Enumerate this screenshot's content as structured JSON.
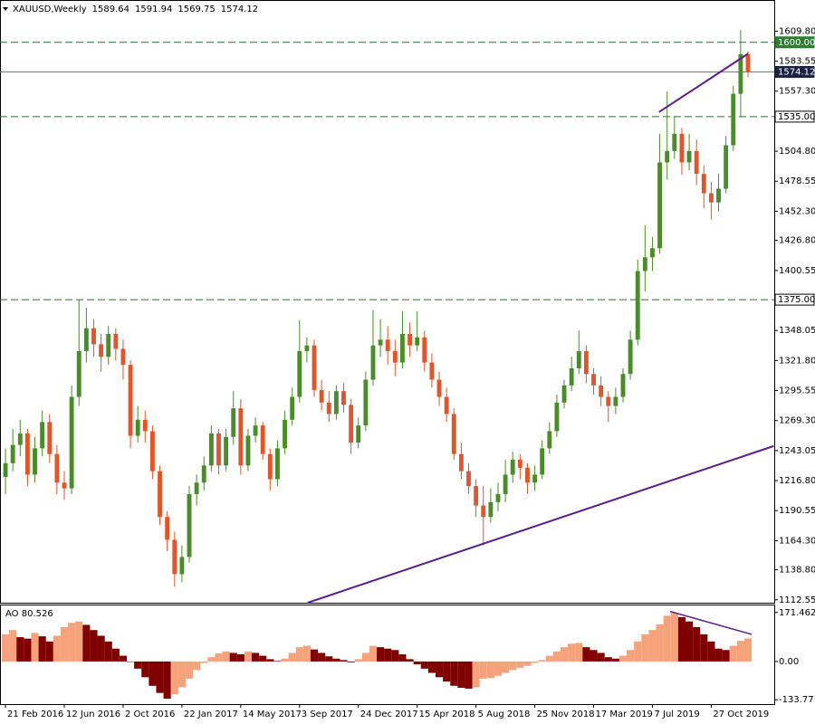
{
  "chart_data": [
    {
      "type": "candlestick",
      "title": "XAUUSD,Weekly",
      "header_values": [
        1589.64,
        1591.94,
        1569.75,
        1574.12
      ],
      "categories": [
        "21 Feb 2016",
        null,
        null,
        null,
        null,
        null,
        null,
        null,
        "12 Jun 2016",
        null,
        null,
        null,
        null,
        null,
        null,
        null,
        "2 Oct 2016",
        null,
        null,
        null,
        null,
        null,
        null,
        null,
        "22 Jan 2017",
        null,
        null,
        null,
        null,
        null,
        null,
        null,
        "14 May 2017",
        null,
        null,
        null,
        null,
        null,
        null,
        null,
        "3 Sep 2017",
        null,
        null,
        null,
        null,
        null,
        null,
        null,
        "24 Dec 2017",
        null,
        null,
        null,
        null,
        null,
        null,
        null,
        "15 Apr 2018",
        null,
        null,
        null,
        null,
        null,
        null,
        null,
        "5 Aug 2018",
        null,
        null,
        null,
        null,
        null,
        null,
        null,
        "25 Nov 2018",
        null,
        null,
        null,
        null,
        null,
        null,
        null,
        "17 Mar 2019",
        null,
        null,
        null,
        null,
        null,
        null,
        null,
        "7 Jul 2019",
        null,
        null,
        null,
        null,
        null,
        null,
        null,
        "27 Oct 2019",
        null,
        null,
        null,
        null,
        null
      ],
      "open": [
        1220,
        1232,
        1248,
        1258,
        1222,
        1245,
        1268,
        1240,
        1215,
        1210,
        1290,
        1330,
        1350,
        1336,
        1325,
        1345,
        1332,
        1318,
        1256,
        1270,
        1260,
        1225,
        1185,
        1165,
        1135,
        1150,
        1205,
        1215,
        1230,
        1258,
        1230,
        1255,
        1280,
        1230,
        1256,
        1265,
        1240,
        1218,
        1245,
        1270,
        1290,
        1330,
        1335,
        1296,
        1285,
        1275,
        1295,
        1283,
        1250,
        1265,
        1305,
        1335,
        1340,
        1330,
        1320,
        1345,
        1335,
        1342,
        1320,
        1305,
        1290,
        1275,
        1240,
        1225,
        1212,
        1195,
        1185,
        1198,
        1205,
        1222,
        1235,
        1228,
        1215,
        1222,
        1245,
        1260,
        1285,
        1300,
        1315,
        1330,
        1310,
        1300,
        1290,
        1282,
        1290,
        1310,
        1340,
        1400,
        1412,
        1420,
        1495,
        1505,
        1520,
        1495,
        1505,
        1485,
        1468,
        1460,
        1472,
        1510,
        1555,
        1589.64
      ],
      "high": [
        1245,
        1262,
        1270,
        1262,
        1255,
        1278,
        1275,
        1248,
        1225,
        1300,
        1375,
        1368,
        1358,
        1345,
        1352,
        1350,
        1340,
        1322,
        1282,
        1278,
        1265,
        1230,
        1190,
        1172,
        1160,
        1212,
        1222,
        1238,
        1265,
        1262,
        1262,
        1295,
        1288,
        1262,
        1272,
        1268,
        1245,
        1252,
        1278,
        1298,
        1357,
        1342,
        1340,
        1305,
        1295,
        1300,
        1302,
        1288,
        1272,
        1312,
        1366,
        1358,
        1352,
        1340,
        1365,
        1355,
        1365,
        1348,
        1328,
        1312,
        1298,
        1280,
        1250,
        1232,
        1218,
        1212,
        1210,
        1215,
        1235,
        1242,
        1240,
        1232,
        1230,
        1252,
        1268,
        1292,
        1305,
        1325,
        1348,
        1335,
        1315,
        1308,
        1295,
        1298,
        1315,
        1348,
        1410,
        1440,
        1430,
        1520,
        1557,
        1535,
        1525,
        1520,
        1515,
        1492,
        1478,
        1485,
        1518,
        1562,
        1611,
        1591.94
      ],
      "low": [
        1205,
        1225,
        1238,
        1212,
        1215,
        1238,
        1232,
        1205,
        1200,
        1205,
        1282,
        1320,
        1325,
        1312,
        1318,
        1322,
        1305,
        1245,
        1250,
        1250,
        1218,
        1178,
        1155,
        1124,
        1128,
        1145,
        1195,
        1208,
        1225,
        1222,
        1225,
        1248,
        1222,
        1225,
        1250,
        1235,
        1208,
        1212,
        1240,
        1265,
        1285,
        1320,
        1290,
        1278,
        1268,
        1270,
        1276,
        1240,
        1245,
        1260,
        1300,
        1325,
        1318,
        1308,
        1315,
        1325,
        1330,
        1312,
        1298,
        1282,
        1268,
        1235,
        1218,
        1205,
        1185,
        1160,
        1180,
        1190,
        1198,
        1215,
        1218,
        1205,
        1208,
        1218,
        1240,
        1255,
        1280,
        1295,
        1310,
        1302,
        1292,
        1282,
        1268,
        1275,
        1285,
        1305,
        1335,
        1382,
        1400,
        1415,
        1480,
        1498,
        1484,
        1488,
        1475,
        1455,
        1445,
        1452,
        1468,
        1505,
        1535,
        1569.75
      ],
      "close": [
        1232,
        1248,
        1258,
        1222,
        1245,
        1268,
        1240,
        1215,
        1210,
        1290,
        1330,
        1350,
        1336,
        1325,
        1345,
        1332,
        1318,
        1256,
        1270,
        1260,
        1225,
        1185,
        1165,
        1135,
        1150,
        1205,
        1215,
        1230,
        1258,
        1230,
        1255,
        1280,
        1230,
        1256,
        1265,
        1240,
        1218,
        1245,
        1270,
        1290,
        1330,
        1335,
        1296,
        1285,
        1275,
        1295,
        1283,
        1250,
        1265,
        1305,
        1335,
        1340,
        1330,
        1320,
        1345,
        1335,
        1342,
        1320,
        1305,
        1290,
        1275,
        1240,
        1225,
        1212,
        1195,
        1185,
        1198,
        1205,
        1222,
        1235,
        1228,
        1215,
        1222,
        1245,
        1260,
        1285,
        1300,
        1315,
        1330,
        1310,
        1300,
        1290,
        1282,
        1290,
        1310,
        1340,
        1400,
        1412,
        1420,
        1495,
        1505,
        1520,
        1495,
        1505,
        1485,
        1468,
        1460,
        1472,
        1510,
        1555,
        1589.64,
        1574.12
      ],
      "up_color": "#4a8c2a",
      "down_color": "#e0562a",
      "ylim": [
        1110,
        1637
      ],
      "yticks": [
        {
          "value": 1609.8,
          "label": "1609.80"
        },
        1583.55,
        {
          "value": 1557.3,
          "label": "1557.30"
        },
        {
          "value": 1504.8,
          "label": "1504.80"
        },
        1478.55,
        {
          "value": 1452.3,
          "label": "1452.30"
        },
        {
          "value": 1426.8,
          "label": "1426.80"
        },
        1400.55,
        1348.05,
        {
          "value": 1321.8,
          "label": "1321.80"
        },
        1295.55,
        {
          "value": 1269.3,
          "label": "1269.30"
        },
        1243.05,
        {
          "value": 1216.8,
          "label": "1216.80"
        },
        1190.55,
        {
          "value": 1164.3,
          "label": "1164.30"
        },
        {
          "value": 1138.8,
          "label": "1138.80"
        },
        1112.55
      ],
      "levels": [
        {
          "value": 1600,
          "label": "1600.00",
          "style": "dashed",
          "line_color": "#2e6b2e",
          "label_bg": "#2e7d32",
          "label_color": "#ffffff"
        },
        {
          "value": 1574.12,
          "label": "1574.12",
          "style": "solid",
          "line_color": "#4a9a4a",
          "label_bg": "#1a2344",
          "label_color": "#ffffff"
        },
        {
          "value": 1535,
          "label": "1535.00",
          "style": "dashed",
          "line_color": "#2e6b2e",
          "label_bg": "#ffffff",
          "label_color": "#000000"
        },
        {
          "value": 1375,
          "label": "1375.00",
          "style": "dashed",
          "line_color": "#2e6b2e",
          "label_bg": "#ffffff",
          "label_color": "#000000"
        }
      ],
      "trendlines": [
        {
          "x": [
            41.1,
            104.5
          ],
          "y": [
            1110,
            1247
          ],
          "color": "#5b1e8c"
        },
        {
          "x": [
            88.9,
            101
          ],
          "y": [
            1539,
            1590
          ],
          "color": "#5b1e8c"
        }
      ]
    },
    {
      "type": "bar",
      "title": "AO 80.526",
      "values": [
        95,
        110,
        85,
        80,
        100,
        88,
        70,
        90,
        120,
        135,
        140,
        128,
        110,
        90,
        70,
        45,
        20,
        0,
        -25,
        -55,
        -85,
        -110,
        -130,
        -115,
        -90,
        -60,
        -30,
        -5,
        15,
        28,
        35,
        30,
        25,
        35,
        30,
        20,
        8,
        2,
        10,
        30,
        50,
        55,
        42,
        30,
        18,
        10,
        5,
        -3,
        8,
        30,
        55,
        50,
        45,
        40,
        25,
        8,
        -10,
        -25,
        -40,
        -55,
        -70,
        -85,
        -92,
        -95,
        -90,
        -60,
        -58,
        -50,
        -40,
        -30,
        -22,
        -15,
        -5,
        5,
        20,
        35,
        50,
        62,
        65,
        50,
        40,
        30,
        15,
        10,
        20,
        40,
        70,
        95,
        110,
        130,
        160,
        170,
        155,
        140,
        120,
        95,
        70,
        45,
        40,
        55,
        72,
        80.526
      ],
      "up_color": "#f6a27b",
      "down_color": "#800000",
      "ylim": [
        -149,
        196
      ],
      "yticks": [
        171.462,
        {
          "value": 0,
          "label": "0.00"
        },
        -133.771
      ],
      "trendlines": [
        {
          "x": [
            90.4,
            101.5
          ],
          "y": [
            175,
            95
          ],
          "color": "#5b1e8c"
        }
      ]
    }
  ]
}
